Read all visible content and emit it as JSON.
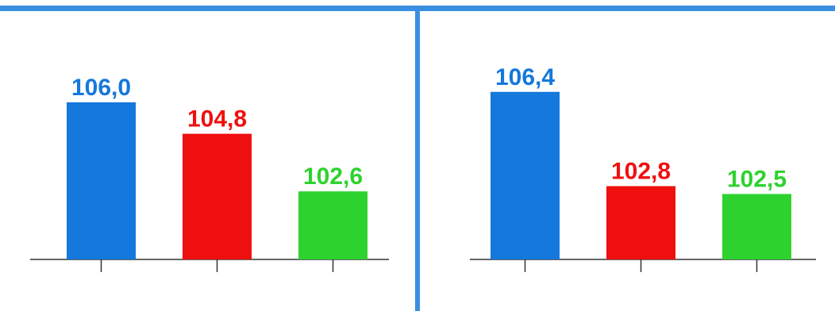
{
  "chart_data": [
    {
      "type": "bar",
      "categories": [
        "",
        "",
        ""
      ],
      "values": [
        106.0,
        104.8,
        102.6
      ],
      "value_labels": [
        "106,0",
        "104,8",
        "102,6"
      ],
      "colors": [
        "#1478dc",
        "#f00f0f",
        "#2ed22e"
      ],
      "title": "",
      "xlabel": "",
      "ylabel": "",
      "ylim": [
        100,
        107
      ],
      "grid": false
    },
    {
      "type": "bar",
      "categories": [
        "",
        "",
        ""
      ],
      "values": [
        106.4,
        102.8,
        102.5
      ],
      "value_labels": [
        "106,4",
        "102,8",
        "102,5"
      ],
      "colors": [
        "#1478dc",
        "#f00f0f",
        "#2ed22e"
      ],
      "title": "",
      "xlabel": "",
      "ylabel": "",
      "ylim": [
        100,
        107
      ],
      "grid": false
    }
  ],
  "colors": {
    "frame": "#3a8fe0",
    "axis": "#333333",
    "background": "#ffffff"
  }
}
